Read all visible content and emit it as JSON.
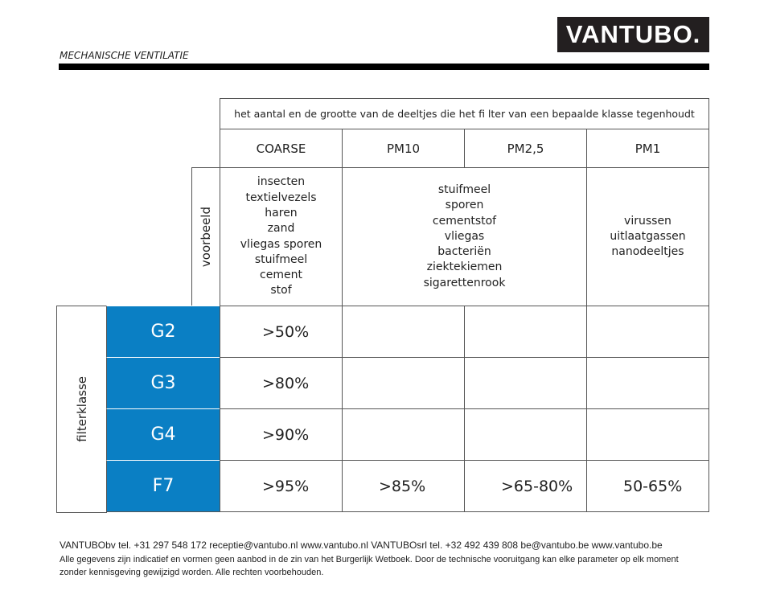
{
  "header": {
    "logo": "VANTUBO.",
    "subtitle": "MECHANISCHE VENTILATIE"
  },
  "table": {
    "caption": "het aantal en de grootte van de deeltjes die het fi lter van een bepaalde klasse tegenhoudt",
    "columns": [
      "COARSE",
      "PM10",
      "PM2,5",
      "PM1"
    ],
    "example_label": "voorbeeld",
    "examples": {
      "coarse": [
        "insecten",
        "textielvezels",
        "haren",
        "zand",
        "vliegas sporen",
        "stuifmeel",
        "cement",
        "stof"
      ],
      "pm10_pm25": [
        "stuifmeel",
        "sporen",
        "cementstof",
        "vliegas",
        "bacteriën",
        "ziektekiemen",
        "sigarettenrook"
      ],
      "pm1": [
        "virussen",
        "uitlaatgassen",
        "nanodeeltjes"
      ]
    },
    "row_label": "filterklasse",
    "rows": [
      {
        "class": "G2",
        "values": [
          ">50%",
          "",
          "",
          ""
        ]
      },
      {
        "class": "G3",
        "values": [
          ">80%",
          "",
          "",
          ""
        ]
      },
      {
        "class": "G4",
        "values": [
          ">90%",
          "",
          "",
          ""
        ]
      },
      {
        "class": "F7",
        "values": [
          ">95%",
          ">85%",
          ">65-80%",
          "50-65%"
        ]
      }
    ]
  },
  "footer": {
    "contact": "VANTUBObv  tel. +31 297 548 172 receptie@vantubo.nl  www.vantubo.nl   VANTUBOsrl tel. +32 492 439 808   be@vantubo.be    www.vantubo.be",
    "disclaimer1": "Alle gegevens zijn indicatief en vormen geen aanbod in de zin van het Burgerlijk Wetboek. Door de technische vooruitgang kan elke parameter op elk moment",
    "disclaimer2": "zonder kennisgeving gewijzigd worden. Alle rechten voorbehouden."
  },
  "colors": {
    "accent": "#0a7fc4"
  }
}
